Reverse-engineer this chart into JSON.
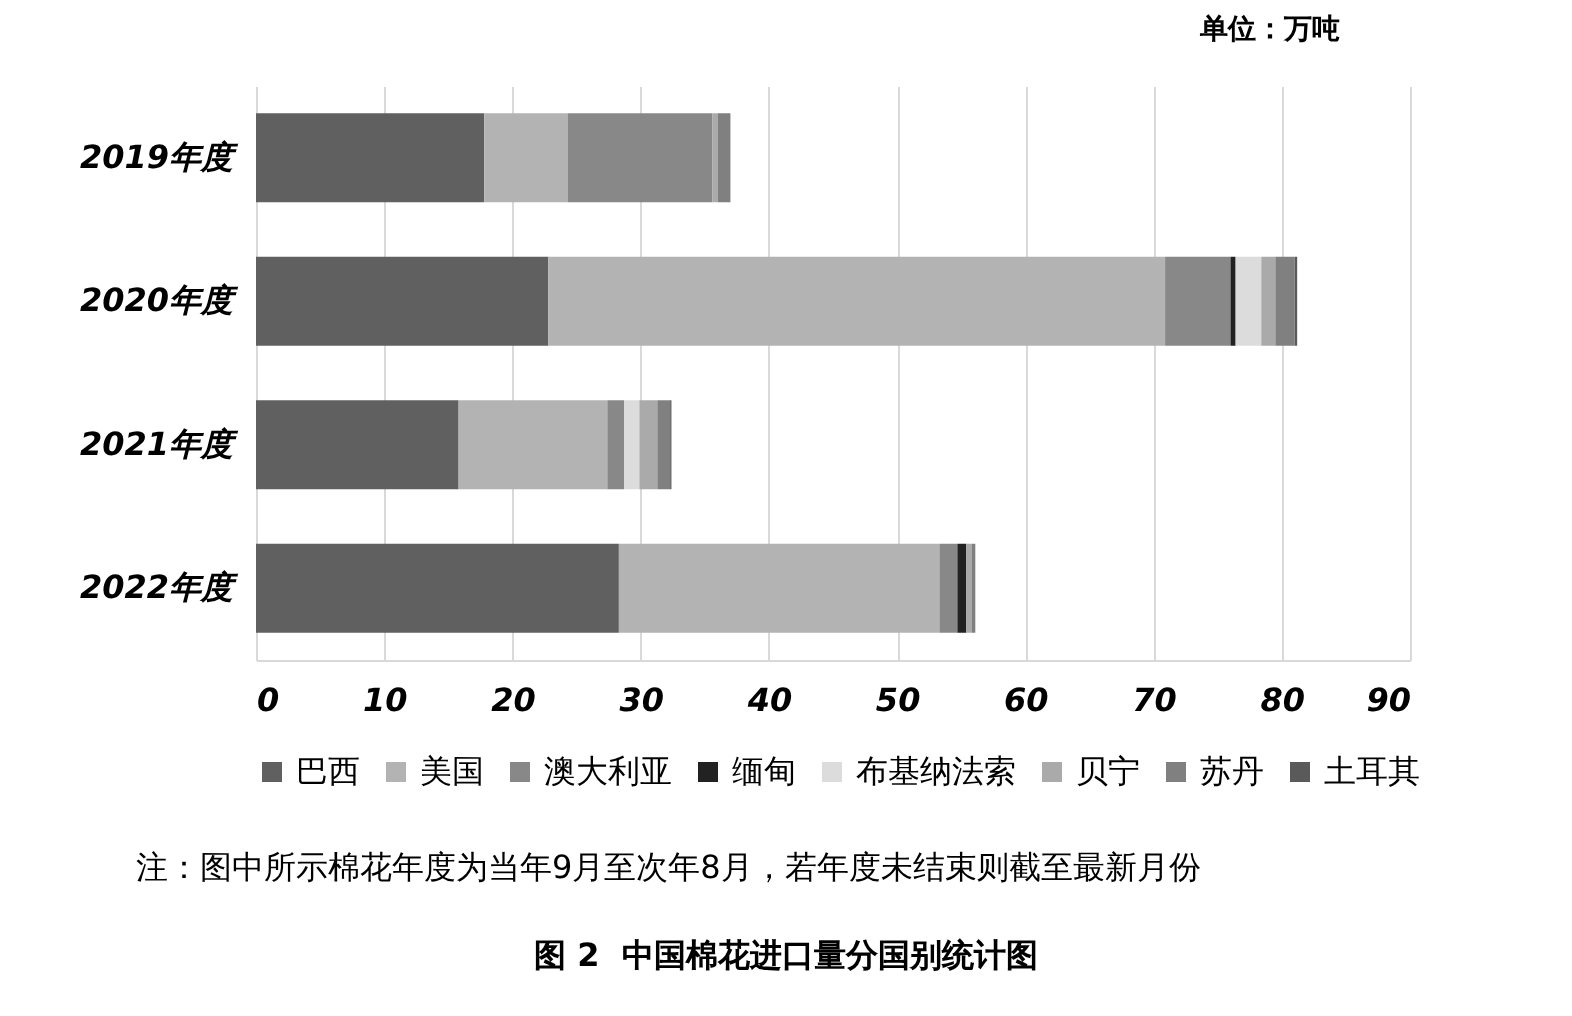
{
  "chart_data": {
    "type": "bar",
    "orientation": "horizontal",
    "stacked": true,
    "title": "图 2  中国棉花进口量分国别统计图",
    "annotations": [
      "单位：万吨",
      "注：图中所示棉花年度为当年9月至次年8月，若年度未结束则截至最新月份"
    ],
    "categories": [
      "2019年度",
      "2020年度",
      "2021年度",
      "2022年度"
    ],
    "series": [
      {
        "name": "巴西",
        "color": "#606060",
        "values": [
          17.8,
          22.8,
          15.8,
          28.3
        ]
      },
      {
        "name": "美国",
        "color": "#b3b3b3",
        "values": [
          6.5,
          48.1,
          11.6,
          25.0
        ]
      },
      {
        "name": "澳大利亚",
        "color": "#888888",
        "values": [
          11.3,
          5.1,
          1.3,
          1.4
        ]
      },
      {
        "name": "缅甸",
        "color": "#222222",
        "values": [
          0,
          0.4,
          0,
          0.7
        ]
      },
      {
        "name": "布基纳法索",
        "color": "#dcdcdc",
        "values": [
          0,
          2.0,
          1.2,
          0
        ]
      },
      {
        "name": "贝宁",
        "color": "#aaaaaa",
        "values": [
          0.4,
          1.1,
          1.4,
          0.4
        ]
      },
      {
        "name": "苏丹",
        "color": "#808080",
        "values": [
          1.0,
          1.5,
          1.0,
          0.3
        ]
      },
      {
        "name": "土耳其",
        "color": "#5a5a5a",
        "values": [
          0,
          0.2,
          0.1,
          0
        ]
      }
    ],
    "xlim": [
      0,
      90
    ],
    "xticks": [
      0,
      10,
      20,
      30,
      40,
      50,
      60,
      70,
      80,
      90
    ],
    "grid": "x",
    "legend": "bottom"
  }
}
